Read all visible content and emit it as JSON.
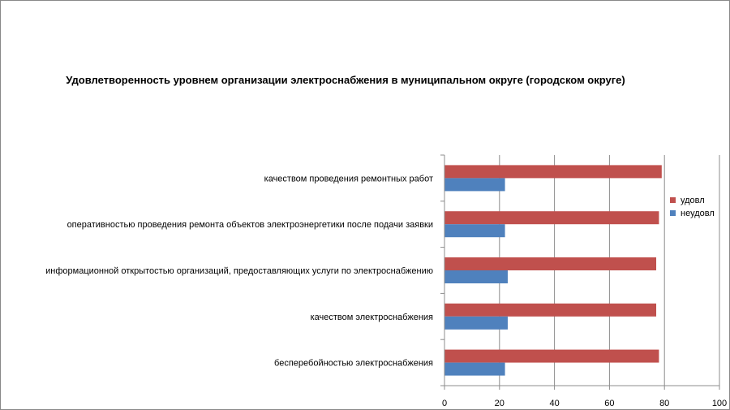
{
  "chart_data": {
    "type": "bar",
    "orientation": "horizontal",
    "title": "Удовлетворенность уровнем организации электроснабжения в муниципальном округе (городском округе)",
    "categories": [
      "бесперебойностью электроснабжения",
      "качеством электроснабжения",
      "информационной открытостью организаций, предоставляющих услуги по электроснабжению",
      "оперативностью проведения ремонта объектов электроэнергетики после подачи заявки",
      "качеством проведения ремонтных работ"
    ],
    "series": [
      {
        "name": "удовл",
        "color": "#c0504d",
        "values": [
          78,
          77,
          77,
          78,
          79
        ]
      },
      {
        "name": "неудовл",
        "color": "#4f81bd",
        "values": [
          22,
          23,
          23,
          22,
          22
        ]
      }
    ],
    "xlim": [
      0,
      100
    ],
    "xticks": [
      0,
      20,
      40,
      60,
      80,
      100
    ],
    "grid": true,
    "legend": "right"
  }
}
